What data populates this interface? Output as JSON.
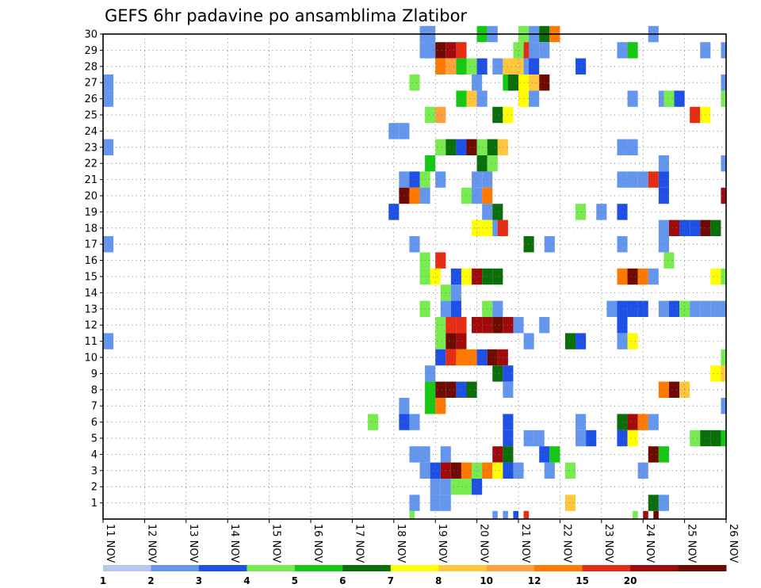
{
  "chart_data": {
    "type": "heatmap",
    "title": "GEFS 6hr padavine po ansamblima Zlatibor",
    "x_ticks": [
      "11 NOV",
      "12 NOV",
      "13 NOV",
      "14 NOV",
      "15 NOV",
      "16 NOV",
      "17 NOV",
      "18 NOV",
      "19 NOV",
      "20 NOV",
      "21 NOV",
      "22 NOV",
      "23 NOV",
      "24 NOV",
      "25 NOV",
      "26 NOV"
    ],
    "y_ticks": [
      "1",
      "2",
      "3",
      "4",
      "5",
      "6",
      "7",
      "8",
      "9",
      "10",
      "11",
      "12",
      "13",
      "14",
      "15",
      "16",
      "17",
      "18",
      "19",
      "20",
      "21",
      "22",
      "23",
      "24",
      "25",
      "26",
      "27",
      "28",
      "29",
      "30"
    ],
    "xlim": [
      0,
      60
    ],
    "ylim": [
      0,
      30
    ],
    "time_step_hours": 6,
    "grid": true,
    "legend": {
      "placement": "bottom",
      "labels": [
        "1",
        "2",
        "3",
        "4",
        "5",
        "6",
        "7",
        "8",
        "10",
        "12",
        "15",
        "20"
      ],
      "colors": [
        "#b4c8f0",
        "#6496ee",
        "#1e50e6",
        "#78eb50",
        "#14c814",
        "#0a6e0a",
        "#ffff00",
        "#ffc83c",
        "#ffa03c",
        "#ff7800",
        "#e62d14",
        "#a00a0a",
        "#6e0a00"
      ]
    },
    "levels": [
      "<2",
      "2-3",
      "3-4",
      "4-5",
      "5-6",
      "6-7",
      "7-8",
      "8-10",
      "10-12",
      "12-15",
      "15-20",
      "20+"
    ],
    "cells": [
      [
        30,
        30.5,
        1,
        1
      ],
      [
        30,
        31,
        1,
        1
      ],
      [
        30,
        36,
        1,
        4
      ],
      [
        30,
        37,
        1,
        1
      ],
      [
        30,
        40,
        1,
        3
      ],
      [
        30,
        41,
        1,
        1
      ],
      [
        30,
        42,
        1,
        5
      ],
      [
        30,
        43,
        1,
        9
      ],
      [
        30,
        52.5,
        1,
        1
      ],
      [
        29,
        30.5,
        1,
        1
      ],
      [
        29,
        31,
        1,
        1
      ],
      [
        29,
        32,
        1,
        12
      ],
      [
        29,
        33,
        1,
        11
      ],
      [
        29,
        34,
        1,
        10
      ],
      [
        29,
        39.5,
        1,
        3
      ],
      [
        29,
        40.5,
        1,
        10
      ],
      [
        29,
        41,
        1,
        1
      ],
      [
        29,
        42,
        1,
        1
      ],
      [
        29,
        49.5,
        1,
        1
      ],
      [
        29,
        50.5,
        1,
        4
      ],
      [
        29,
        57.5,
        1,
        1
      ],
      [
        29,
        59.5,
        1,
        1
      ],
      [
        28,
        32,
        1,
        9
      ],
      [
        28,
        33,
        1,
        8
      ],
      [
        28,
        34,
        1,
        4
      ],
      [
        28,
        35,
        1,
        3
      ],
      [
        28,
        36,
        1,
        2
      ],
      [
        28,
        37.5,
        1,
        1
      ],
      [
        28,
        38.5,
        1,
        7
      ],
      [
        28,
        39.5,
        1,
        7
      ],
      [
        28,
        40.5,
        1,
        1
      ],
      [
        28,
        41,
        1,
        2
      ],
      [
        28,
        45.5,
        1,
        2
      ],
      [
        27,
        0,
        1,
        1
      ],
      [
        27,
        29.5,
        1,
        3
      ],
      [
        27,
        35.5,
        1,
        1
      ],
      [
        27,
        38.5,
        1,
        4
      ],
      [
        27,
        39,
        1,
        5
      ],
      [
        27,
        40,
        1,
        6
      ],
      [
        27,
        41,
        1,
        7
      ],
      [
        27,
        42,
        1,
        12
      ],
      [
        27,
        59.5,
        1,
        1
      ],
      [
        27,
        60,
        1,
        5
      ],
      [
        26,
        0,
        1,
        1
      ],
      [
        26,
        34,
        1,
        4
      ],
      [
        26,
        35,
        1,
        7
      ],
      [
        26,
        36,
        1,
        1
      ],
      [
        26,
        40,
        1,
        6
      ],
      [
        26,
        41,
        1,
        1
      ],
      [
        26,
        50.5,
        1,
        1
      ],
      [
        26,
        53.5,
        1,
        1
      ],
      [
        26,
        54,
        1,
        3
      ],
      [
        26,
        55,
        1,
        2
      ],
      [
        26,
        59.5,
        1,
        3
      ],
      [
        26,
        60,
        1,
        1
      ],
      [
        25,
        31,
        1,
        3
      ],
      [
        25,
        32,
        1,
        8
      ],
      [
        25,
        37.5,
        1,
        5
      ],
      [
        25,
        38.5,
        1,
        6
      ],
      [
        25,
        56.5,
        1,
        10
      ],
      [
        25,
        57.5,
        1,
        6
      ],
      [
        24,
        27.5,
        1,
        1
      ],
      [
        24,
        28.5,
        1,
        1
      ],
      [
        23,
        0,
        1,
        1
      ],
      [
        23,
        32,
        1,
        3
      ],
      [
        23,
        33,
        1,
        5
      ],
      [
        23,
        34,
        1,
        2
      ],
      [
        23,
        35,
        1,
        12
      ],
      [
        23,
        36,
        1,
        3
      ],
      [
        23,
        37,
        1,
        5
      ],
      [
        23,
        38,
        1,
        7
      ],
      [
        23,
        49.5,
        1,
        1
      ],
      [
        23,
        50.5,
        1,
        1
      ],
      [
        22,
        31,
        1,
        4
      ],
      [
        22,
        36,
        1,
        5
      ],
      [
        22,
        37,
        1,
        3
      ],
      [
        22,
        53.5,
        1,
        1
      ],
      [
        22,
        59.5,
        1,
        1
      ],
      [
        21,
        28.5,
        1,
        1
      ],
      [
        21,
        29.5,
        1,
        2
      ],
      [
        21,
        30.5,
        1,
        3
      ],
      [
        21,
        32,
        1,
        1
      ],
      [
        21,
        35.5,
        1,
        1
      ],
      [
        21,
        36.5,
        1,
        1
      ],
      [
        21,
        49.5,
        1,
        1
      ],
      [
        21,
        50.5,
        1,
        1
      ],
      [
        21,
        51.5,
        1,
        1
      ],
      [
        21,
        52.5,
        1,
        10
      ],
      [
        21,
        53.5,
        1,
        2
      ],
      [
        20,
        28.5,
        1,
        12
      ],
      [
        20,
        29.5,
        1,
        9
      ],
      [
        20,
        30.5,
        1,
        1
      ],
      [
        20,
        34.5,
        1,
        3
      ],
      [
        20,
        35.5,
        1,
        1
      ],
      [
        20,
        36.5,
        1,
        9
      ],
      [
        20,
        53.5,
        1,
        2
      ],
      [
        20,
        59.5,
        1,
        11
      ],
      [
        20,
        60,
        1,
        2
      ],
      [
        19,
        27.5,
        1,
        2
      ],
      [
        19,
        36.5,
        1,
        1
      ],
      [
        19,
        37.5,
        1,
        5
      ],
      [
        19,
        45.5,
        1,
        3
      ],
      [
        19,
        47.5,
        1,
        1
      ],
      [
        19,
        49.5,
        1,
        2
      ],
      [
        18,
        35.5,
        1,
        6
      ],
      [
        18,
        36.5,
        1,
        6
      ],
      [
        18,
        37.5,
        1,
        1
      ],
      [
        18,
        38,
        1,
        10
      ],
      [
        18,
        53.5,
        1,
        1
      ],
      [
        18,
        54.5,
        1,
        11
      ],
      [
        18,
        55.5,
        1,
        2
      ],
      [
        18,
        56.5,
        1,
        2
      ],
      [
        18,
        57.5,
        1,
        12
      ],
      [
        18,
        58.5,
        1,
        5
      ],
      [
        17,
        0,
        1,
        1
      ],
      [
        17,
        29.5,
        1,
        1
      ],
      [
        17,
        40.5,
        1,
        5
      ],
      [
        17,
        42.5,
        1,
        1
      ],
      [
        17,
        49.5,
        1,
        1
      ],
      [
        17,
        53.5,
        1,
        1
      ],
      [
        16,
        30.5,
        1,
        3
      ],
      [
        16,
        32,
        1,
        10
      ],
      [
        16,
        54,
        1,
        3
      ],
      [
        15,
        30.5,
        1,
        3
      ],
      [
        15,
        31.5,
        1,
        6
      ],
      [
        15,
        33.5,
        1,
        2
      ],
      [
        15,
        34.5,
        1,
        6
      ],
      [
        15,
        35.5,
        1,
        11
      ],
      [
        15,
        36.5,
        1,
        5
      ],
      [
        15,
        37.5,
        1,
        5
      ],
      [
        15,
        49.5,
        1,
        9
      ],
      [
        15,
        50.5,
        1,
        12
      ],
      [
        15,
        51.5,
        1,
        9
      ],
      [
        15,
        52.5,
        1,
        1
      ],
      [
        15,
        58.5,
        1,
        6
      ],
      [
        15,
        59.5,
        1,
        3
      ],
      [
        14,
        32.5,
        1,
        3
      ],
      [
        14,
        33.5,
        1,
        1
      ],
      [
        13,
        30.5,
        1,
        3
      ],
      [
        13,
        32.5,
        1,
        1
      ],
      [
        13,
        33.5,
        1,
        2
      ],
      [
        13,
        36.5,
        1,
        3
      ],
      [
        13,
        37.5,
        1,
        1
      ],
      [
        13,
        48.5,
        1,
        1
      ],
      [
        13,
        49.5,
        1,
        2
      ],
      [
        13,
        50.5,
        1,
        2
      ],
      [
        13,
        51.5,
        1,
        2
      ],
      [
        13,
        53.5,
        1,
        1
      ],
      [
        13,
        54.5,
        1,
        2
      ],
      [
        13,
        55.5,
        1,
        3
      ],
      [
        13,
        56.5,
        1,
        1
      ],
      [
        13,
        57.5,
        1,
        1
      ],
      [
        13,
        58.5,
        1,
        1
      ],
      [
        13,
        59.5,
        1,
        1
      ],
      [
        12,
        32,
        1,
        3
      ],
      [
        12,
        33,
        1,
        10
      ],
      [
        12,
        34,
        1,
        10
      ],
      [
        12,
        35.5,
        1,
        11
      ],
      [
        12,
        36.5,
        1,
        11
      ],
      [
        12,
        37.5,
        1,
        12
      ],
      [
        12,
        38.5,
        1,
        11
      ],
      [
        12,
        39.5,
        1,
        1
      ],
      [
        12,
        42,
        1,
        1
      ],
      [
        12,
        49.5,
        1,
        2
      ],
      [
        11,
        0,
        1,
        1
      ],
      [
        11,
        32,
        1,
        3
      ],
      [
        11,
        33,
        1,
        12
      ],
      [
        11,
        34,
        1,
        11
      ],
      [
        11,
        40.5,
        1,
        1
      ],
      [
        11,
        44.5,
        1,
        5
      ],
      [
        11,
        45.5,
        1,
        2
      ],
      [
        11,
        49.5,
        1,
        1
      ],
      [
        11,
        50.5,
        1,
        6
      ],
      [
        10,
        32,
        1,
        2
      ],
      [
        10,
        33,
        1,
        10
      ],
      [
        10,
        34,
        1,
        9
      ],
      [
        10,
        35,
        1,
        9
      ],
      [
        10,
        36,
        1,
        2
      ],
      [
        10,
        37,
        1,
        12
      ],
      [
        10,
        38,
        1,
        11
      ],
      [
        10,
        59.5,
        1,
        3
      ],
      [
        10,
        60,
        1,
        10
      ],
      [
        9,
        31,
        1,
        1
      ],
      [
        9,
        37.5,
        1,
        5
      ],
      [
        9,
        38.5,
        1,
        2
      ],
      [
        9,
        58.5,
        1,
        6
      ],
      [
        9,
        59.5,
        1,
        7
      ],
      [
        9,
        60,
        1,
        1
      ],
      [
        8,
        31,
        1,
        4
      ],
      [
        8,
        32,
        1,
        12
      ],
      [
        8,
        33,
        1,
        12
      ],
      [
        8,
        34,
        1,
        2
      ],
      [
        8,
        35,
        1,
        5
      ],
      [
        8,
        38.5,
        1,
        1
      ],
      [
        8,
        53.5,
        1,
        9
      ],
      [
        8,
        54.5,
        1,
        12
      ],
      [
        8,
        55.5,
        1,
        7
      ],
      [
        7,
        28.5,
        1,
        1
      ],
      [
        7,
        31,
        1,
        4
      ],
      [
        7,
        32,
        1,
        9
      ],
      [
        7,
        59.5,
        1,
        1
      ],
      [
        6,
        25.5,
        1,
        3
      ],
      [
        6,
        28.5,
        1,
        2
      ],
      [
        6,
        29.5,
        1,
        1
      ],
      [
        6,
        38.5,
        1,
        2
      ],
      [
        6,
        45.5,
        1,
        1
      ],
      [
        6,
        49.5,
        1,
        5
      ],
      [
        6,
        50.5,
        1,
        11
      ],
      [
        6,
        51.5,
        1,
        9
      ],
      [
        6,
        52.5,
        1,
        1
      ],
      [
        5,
        38.5,
        1,
        2
      ],
      [
        5,
        40.5,
        1,
        1
      ],
      [
        5,
        41.5,
        1,
        1
      ],
      [
        5,
        45.5,
        1,
        1
      ],
      [
        5,
        46.5,
        1,
        2
      ],
      [
        5,
        49.5,
        1,
        2
      ],
      [
        5,
        50.5,
        1,
        6
      ],
      [
        5,
        56.5,
        1,
        3
      ],
      [
        5,
        57.5,
        1,
        5
      ],
      [
        5,
        58.5,
        1,
        5
      ],
      [
        5,
        59.5,
        1,
        4
      ],
      [
        5,
        60,
        1,
        2
      ],
      [
        4,
        29.5,
        1,
        1
      ],
      [
        4,
        30.5,
        1,
        1
      ],
      [
        4,
        32.5,
        1,
        1
      ],
      [
        4,
        37.5,
        1,
        11
      ],
      [
        4,
        38.5,
        1,
        5
      ],
      [
        4,
        42,
        1,
        2
      ],
      [
        4,
        43,
        1,
        4
      ],
      [
        4,
        52.5,
        1,
        12
      ],
      [
        4,
        53.5,
        1,
        4
      ],
      [
        3,
        30.5,
        1,
        1
      ],
      [
        3,
        31.5,
        1,
        2
      ],
      [
        3,
        32.5,
        1,
        11
      ],
      [
        3,
        33.5,
        1,
        12
      ],
      [
        3,
        34.5,
        1,
        9
      ],
      [
        3,
        35.5,
        1,
        3
      ],
      [
        3,
        36.5,
        1,
        9
      ],
      [
        3,
        37.5,
        1,
        6
      ],
      [
        3,
        38.5,
        1,
        2
      ],
      [
        3,
        39.5,
        1,
        1
      ],
      [
        3,
        42.5,
        1,
        1
      ],
      [
        3,
        44.5,
        1,
        3
      ],
      [
        3,
        51.5,
        1,
        1
      ],
      [
        2,
        31.5,
        1,
        1
      ],
      [
        2,
        32.5,
        1,
        1
      ],
      [
        2,
        33.5,
        1,
        3
      ],
      [
        2,
        34.5,
        1,
        3
      ],
      [
        2,
        35.5,
        1,
        2
      ],
      [
        1,
        29.5,
        1,
        1
      ],
      [
        1,
        31.5,
        1,
        1
      ],
      [
        1,
        32.5,
        1,
        1
      ],
      [
        1,
        44.5,
        1,
        7
      ],
      [
        1,
        52.5,
        1,
        5
      ],
      [
        1,
        53.5,
        1,
        1
      ],
      [
        0,
        29.5,
        0.5,
        3
      ],
      [
        0,
        37.5,
        0.5,
        1
      ],
      [
        0,
        38.5,
        0.5,
        1
      ],
      [
        0,
        39.5,
        0.5,
        2
      ],
      [
        0,
        40.5,
        0.5,
        10
      ],
      [
        0,
        51,
        0.5,
        3
      ],
      [
        0,
        52,
        0.5,
        11
      ],
      [
        0,
        53,
        0.5,
        12
      ]
    ]
  }
}
